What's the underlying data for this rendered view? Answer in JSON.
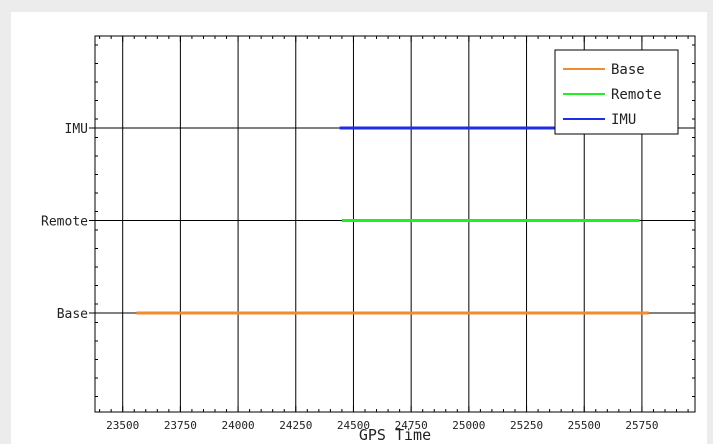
{
  "chart_data": {
    "type": "timeline",
    "title": "",
    "xlabel": "GPS Time",
    "ylabel": "",
    "xlim": [
      23380,
      25980
    ],
    "xticks": [
      23500,
      23750,
      24000,
      24250,
      24500,
      24750,
      25000,
      25250,
      25500,
      25750
    ],
    "rows": [
      "Base",
      "Remote",
      "IMU"
    ],
    "grid": true,
    "legend": "top-right",
    "series": [
      {
        "name": "Base",
        "row": "Base",
        "start": 23560,
        "end": 25780,
        "color": "#f28a2e"
      },
      {
        "name": "Remote",
        "row": "Remote",
        "start": 24450,
        "end": 25740,
        "color": "#22ee22"
      },
      {
        "name": "IMU",
        "row": "IMU",
        "start": 24440,
        "end": 25760,
        "color": "#1e2ee6"
      }
    ]
  }
}
